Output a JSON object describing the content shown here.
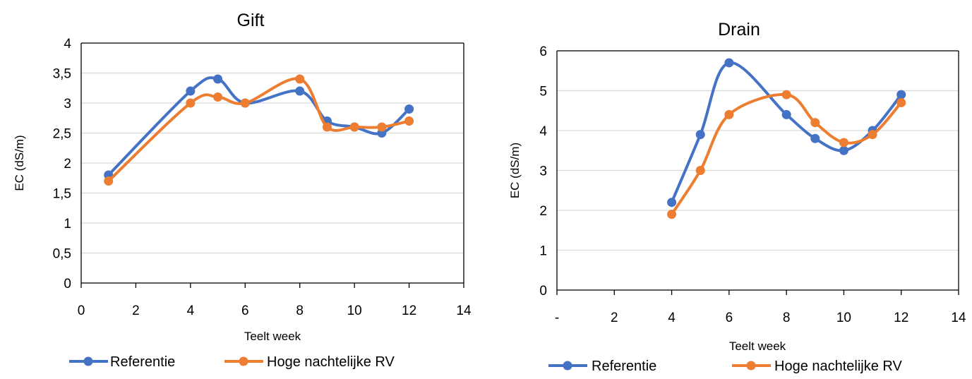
{
  "colors": {
    "referentie": "#4472C4",
    "hoge": "#ED7D31"
  },
  "chart_data": [
    {
      "type": "line",
      "title": "Gift",
      "xlabel": "Teelt week",
      "ylabel": "EC (dS/m)",
      "xlim": [
        0,
        14
      ],
      "ylim": [
        0,
        4
      ],
      "x_ticks": [
        0,
        2,
        4,
        6,
        8,
        10,
        12,
        14
      ],
      "x_tick_labels": [
        "0",
        "2",
        "4",
        "6",
        "8",
        "10",
        "12",
        "14"
      ],
      "y_ticks": [
        0,
        0.5,
        1,
        1.5,
        2,
        2.5,
        3,
        3.5,
        4
      ],
      "y_tick_labels": [
        "0",
        "0,5",
        "1",
        "1,5",
        "2",
        "2,5",
        "3",
        "3,5",
        "4"
      ],
      "grid": true,
      "smooth": true,
      "legend_position": "bottom",
      "series": [
        {
          "name": "Referentie",
          "color": "#4472C4",
          "x": [
            1,
            4,
            5,
            6,
            8,
            9,
            10,
            11,
            12
          ],
          "y": [
            1.8,
            3.2,
            3.4,
            3.0,
            3.2,
            2.7,
            2.6,
            2.5,
            2.9
          ]
        },
        {
          "name": "Hoge nachtelijke RV",
          "color": "#ED7D31",
          "x": [
            1,
            4,
            5,
            6,
            8,
            9,
            10,
            11,
            12
          ],
          "y": [
            1.7,
            3.0,
            3.1,
            3.0,
            3.4,
            2.6,
            2.6,
            2.6,
            2.7
          ]
        }
      ]
    },
    {
      "type": "line",
      "title": "Drain",
      "xlabel": "Teelt week",
      "ylabel": "EC (dS/m)",
      "xlim": [
        0,
        14
      ],
      "ylim": [
        0,
        6
      ],
      "x_ticks": [
        0,
        2,
        4,
        6,
        8,
        10,
        12,
        14
      ],
      "x_tick_labels": [
        "-",
        "2",
        "4",
        "6",
        "8",
        "10",
        "12",
        "14"
      ],
      "y_ticks": [
        0,
        1,
        2,
        3,
        4,
        5,
        6
      ],
      "y_tick_labels": [
        "0",
        "1",
        "2",
        "3",
        "4",
        "5",
        "6"
      ],
      "grid": true,
      "smooth": true,
      "legend_position": "bottom",
      "series": [
        {
          "name": "Referentie",
          "color": "#4472C4",
          "x": [
            4,
            5,
            6,
            8,
            9,
            10,
            11,
            12
          ],
          "y": [
            2.2,
            3.9,
            5.7,
            4.4,
            3.8,
            3.5,
            4.0,
            4.9
          ]
        },
        {
          "name": "Hoge nachtelijke RV",
          "color": "#ED7D31",
          "x": [
            4,
            5,
            6,
            8,
            9,
            10,
            11,
            12
          ],
          "y": [
            1.9,
            3.0,
            4.4,
            4.9,
            4.2,
            3.7,
            3.9,
            4.7
          ]
        }
      ]
    }
  ]
}
